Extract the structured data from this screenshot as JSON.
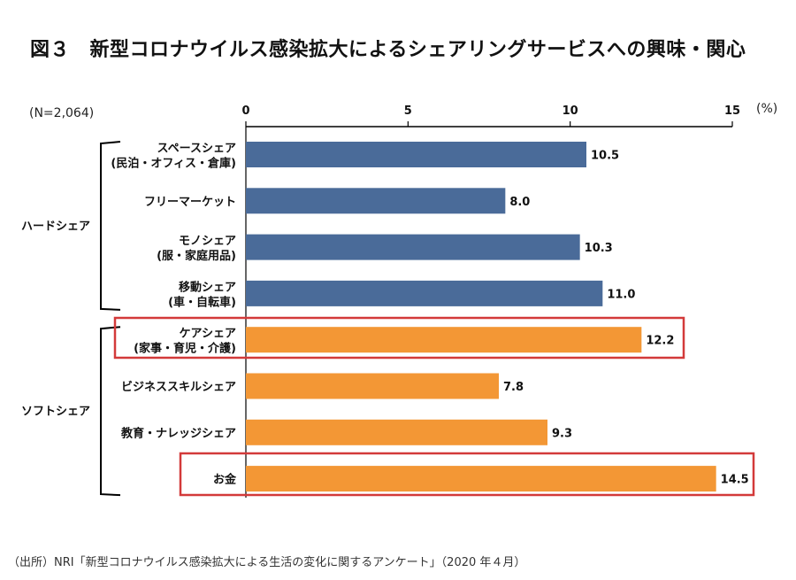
{
  "title": "図３　新型コロナウイルス感染拡大によるシェアリングサービスへの興味・関心",
  "sample_size": "(N=2,064)",
  "unit": "(%)",
  "source": "（出所）NRI「新型コロナウイルス感染拡大による生活の変化に関するアンケート」（2020 年４月）",
  "colors": {
    "hard": "#4a6b99",
    "soft": "#f39735",
    "highlight": "#d33a3a"
  },
  "chart_data": {
    "type": "bar",
    "orientation": "horizontal",
    "title": "図３　新型コロナウイルス感染拡大によるシェアリングサービスへの興味・関心",
    "xlabel": "(%)",
    "ylabel": "",
    "xlim": [
      0,
      15
    ],
    "xticks": [
      0,
      5,
      10,
      15
    ],
    "grid": false,
    "categories": [
      [
        "スペースシェア",
        "(民泊・オフィス・倉庫)"
      ],
      [
        "フリーマーケット"
      ],
      [
        "モノシェア",
        "(服・家庭用品)"
      ],
      [
        "移動シェア",
        "(車・自転車)"
      ],
      [
        "ケアシェア",
        "(家事・育児・介護)"
      ],
      [
        "ビジネススキルシェア"
      ],
      [
        "教育・ナレッジシェア"
      ],
      [
        "お金"
      ]
    ],
    "values": [
      10.5,
      8.0,
      10.3,
      11.0,
      12.2,
      7.8,
      9.3,
      14.5
    ],
    "value_labels": [
      "10.5",
      "8.0",
      "10.3",
      "11.0",
      "12.2",
      "7.8",
      "9.3",
      "14.5"
    ],
    "groups": [
      {
        "name": "ハードシェア",
        "indices": [
          0,
          1,
          2,
          3
        ],
        "color_key": "hard"
      },
      {
        "name": "ソフトシェア",
        "indices": [
          4,
          5,
          6,
          7
        ],
        "color_key": "soft"
      }
    ],
    "highlighted": [
      4,
      7
    ]
  }
}
